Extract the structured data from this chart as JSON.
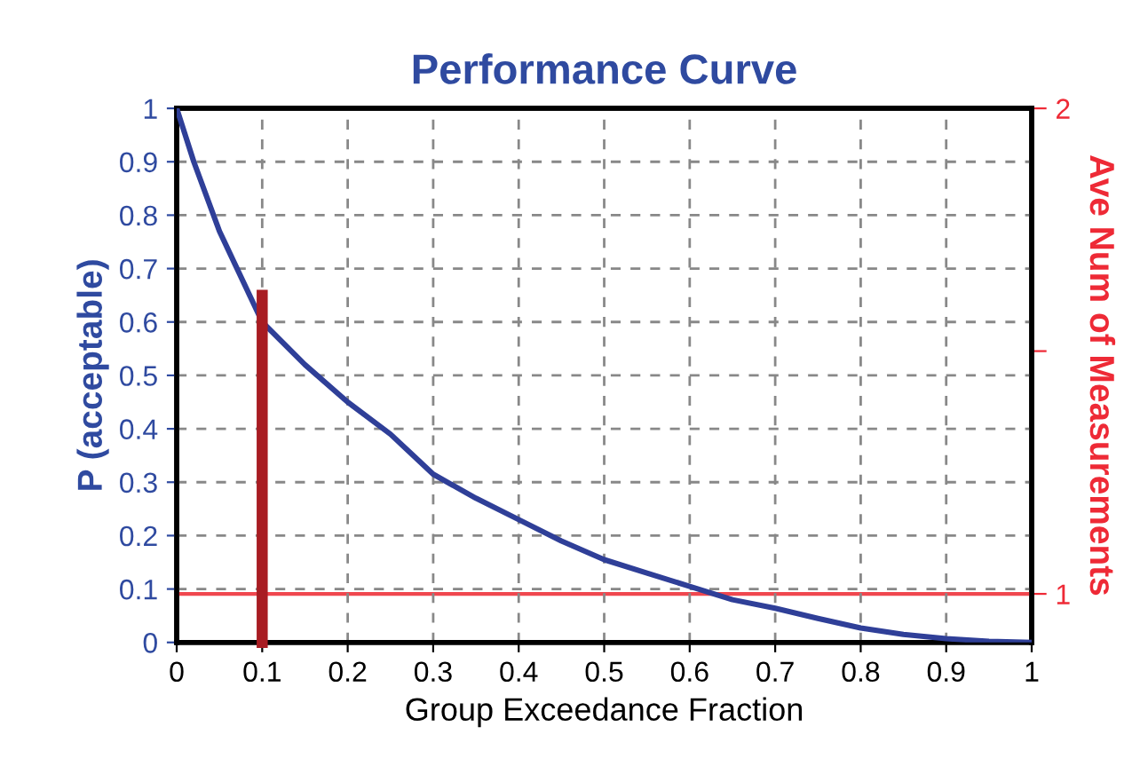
{
  "chart_data": {
    "type": "line",
    "title": "Performance Curve",
    "xlabel": "Group Exceedance Fraction",
    "ylabel": "P (acceptable)",
    "y2label": "Ave Num of Measurements",
    "series": [
      {
        "color": "#2f3f98",
        "x": [
          0,
          0.02,
          0.05,
          0.1,
          0.15,
          0.2,
          0.25,
          0.3,
          0.35,
          0.4,
          0.45,
          0.5,
          0.55,
          0.6,
          0.65,
          0.7,
          0.75,
          0.8,
          0.85,
          0.9,
          0.95,
          1.0
        ],
        "values": [
          1.0,
          0.9,
          0.77,
          0.6,
          0.52,
          0.45,
          0.39,
          0.315,
          0.27,
          0.23,
          0.19,
          0.155,
          0.13,
          0.105,
          0.08,
          0.064,
          0.045,
          0.027,
          0.015,
          0.007,
          0.002,
          0
        ]
      },
      {
        "color": "#a81c22",
        "x": [
          0.1,
          0.1
        ],
        "values": [
          0,
          0.65
        ]
      }
    ],
    "ref_lines": [
      {
        "axis": "y2",
        "value": 1,
        "color": "#f0474f"
      }
    ],
    "xlim": [
      0,
      1
    ],
    "xticks": [
      0,
      0.1,
      0.2,
      0.3,
      0.4,
      0.5,
      0.6,
      0.7,
      0.8,
      0.9,
      1
    ],
    "ylim": [
      0,
      1
    ],
    "yticks": [
      0,
      0.1,
      0.2,
      0.3,
      0.4,
      0.5,
      0.6,
      0.7,
      0.8,
      0.9,
      1
    ],
    "y2lim": [
      0.9,
      2
    ],
    "y2ticks": [
      1,
      {
        "value": 1.5,
        "label": null
      },
      2
    ],
    "grid": true,
    "line_style": "solid",
    "marker": "none",
    "legend": false
  }
}
